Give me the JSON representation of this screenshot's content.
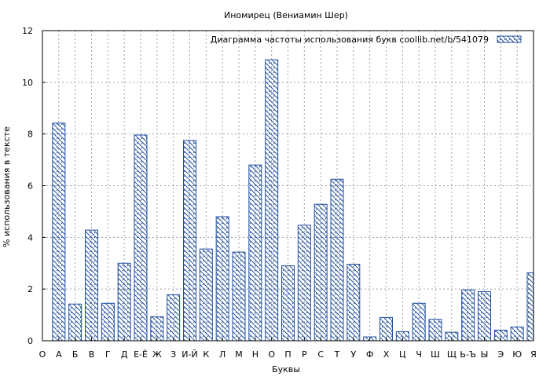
{
  "chart_data": {
    "type": "bar",
    "title": "Иномирец (Вениамин Шер)",
    "xlabel": "Буквы",
    "ylabel": "% использования в тексте",
    "legend": {
      "label": "Диаграмма частоты использования букв  coollib.net/b/541079",
      "placement": "top-right"
    },
    "ylim": [
      0,
      12
    ],
    "yticks": [
      0,
      2,
      4,
      6,
      8,
      10,
      12
    ],
    "grid": true,
    "categories": [
      "О",
      "А",
      "Б",
      "В",
      "Г",
      "Д",
      "Е-Ё",
      "Ж",
      "З",
      "И-Й",
      "К",
      "Л",
      "М",
      "Н",
      "О",
      "П",
      "Р",
      "С",
      "Т",
      "У",
      "Ф",
      "Х",
      "Ц",
      "Ч",
      "Ш",
      "Щ",
      "Ь-Ъ",
      "Ы",
      "Э",
      "Ю",
      "Я"
    ],
    "values": [
      null,
      8.42,
      1.42,
      4.28,
      1.45,
      3.0,
      7.96,
      0.93,
      1.78,
      7.75,
      3.55,
      4.8,
      3.43,
      6.8,
      10.87,
      2.9,
      4.47,
      5.28,
      6.25,
      2.96,
      0.15,
      0.9,
      0.35,
      1.45,
      0.83,
      0.33,
      1.97,
      1.9,
      0.41,
      0.53,
      2.63
    ],
    "colors": {
      "bar_stroke": "#1f4e9e",
      "hatch": "#1f4e9e",
      "grid": "#a0a0a0"
    }
  }
}
